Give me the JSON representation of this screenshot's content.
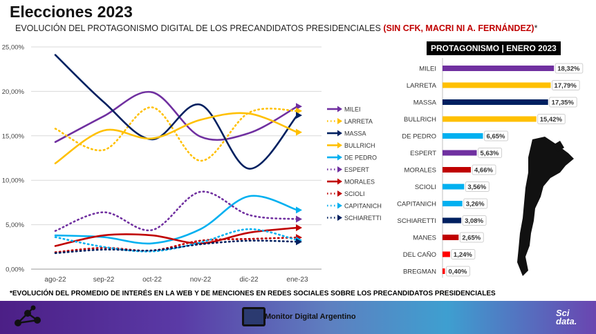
{
  "page": {
    "title": "Elecciones 2023",
    "subtitle_main": "EVOLUCIÓN DEL PROTAGONISMO DIGITAL DE LOS PRECANDIDATOS PRESIDENCIALES",
    "subtitle_red": "(SIN CFK, MACRI NI A. FERNÁNDEZ)",
    "subtitle_mark": "*",
    "footnote": "*EVOLUCIÓN DEL PROMEDIO DE INTERÉS EN LA WEB Y DE MENCIONES EN REDES SOCIALES SOBRE LOS PRECANDIDATOS PRESIDENCIALES",
    "footer_label": "Monitor Digital Argentino",
    "footer_brand_1": "Sci",
    "footer_brand_2": "data."
  },
  "colors": {
    "purple": "#7030a0",
    "yellow": "#ffc000",
    "navy": "#002060",
    "cyan": "#00b0f0",
    "red": "#c00000",
    "bright_red": "#ff0000"
  },
  "chart_data": [
    {
      "type": "line",
      "categories": [
        "ago-22",
        "sep-22",
        "oct-22",
        "nov-22",
        "dic-22",
        "ene-23"
      ],
      "ylim": [
        0,
        25
      ],
      "yticks": [
        "0,00%",
        "5,00%",
        "10,00%",
        "15,00%",
        "20,00%",
        "25,00%"
      ],
      "grid": true,
      "legend_position": "right",
      "series": [
        {
          "name": "MILEI",
          "color": "#7030a0",
          "style": "solid",
          "values": [
            14.3,
            17.2,
            19.9,
            14.9,
            15.3,
            18.3
          ]
        },
        {
          "name": "LARRETA",
          "color": "#ffc000",
          "style": "dotted",
          "values": [
            15.8,
            13.4,
            18.2,
            12.2,
            17.6,
            17.8
          ]
        },
        {
          "name": "MASSA",
          "color": "#002060",
          "style": "solid",
          "values": [
            24.1,
            18.8,
            14.6,
            18.5,
            11.3,
            17.3
          ]
        },
        {
          "name": "BULLRICH",
          "color": "#ffc000",
          "style": "solid",
          "values": [
            11.9,
            15.6,
            14.7,
            16.8,
            17.5,
            15.4
          ]
        },
        {
          "name": "DE PEDRO",
          "color": "#00b0f0",
          "style": "solid",
          "values": [
            3.8,
            3.6,
            2.9,
            4.5,
            8.2,
            6.65
          ]
        },
        {
          "name": "ESPERT",
          "color": "#7030a0",
          "style": "dotted",
          "values": [
            4.3,
            6.4,
            4.4,
            8.7,
            6.1,
            5.63
          ]
        },
        {
          "name": "MORALES",
          "color": "#c00000",
          "style": "solid",
          "values": [
            2.6,
            3.8,
            3.8,
            2.9,
            4.1,
            4.66
          ]
        },
        {
          "name": "SCIOLI",
          "color": "#c00000",
          "style": "dotted",
          "values": [
            1.9,
            2.4,
            2.1,
            3.2,
            3.4,
            3.56
          ]
        },
        {
          "name": "CAPITANICH",
          "color": "#00b0f0",
          "style": "dotted",
          "values": [
            3.6,
            2.5,
            2.0,
            3.0,
            4.5,
            3.26
          ]
        },
        {
          "name": "SCHIARETTI",
          "color": "#002060",
          "style": "dotted",
          "values": [
            1.8,
            2.2,
            2.1,
            2.8,
            3.2,
            3.08
          ]
        }
      ]
    },
    {
      "type": "bar",
      "orientation": "horizontal",
      "title": "PROTAGONISMO  |  ENERO 2023",
      "xlim": [
        0,
        20
      ],
      "categories": [
        "MILEI",
        "LARRETA",
        "MASSA",
        "BULLRICH",
        "DE PEDRO",
        "ESPERT",
        "MORALES",
        "SCIOLI",
        "CAPITANICH",
        "SCHIARETTI",
        "MANES",
        "DEL CAÑO",
        "BREGMAN"
      ],
      "values": [
        18.32,
        17.79,
        17.35,
        15.42,
        6.65,
        5.63,
        4.66,
        3.56,
        3.26,
        3.08,
        2.65,
        1.24,
        0.4
      ],
      "labels": [
        "18,32%",
        "17,79%",
        "17,35%",
        "15,42%",
        "6,65%",
        "5,63%",
        "4,66%",
        "3,56%",
        "3,26%",
        "3,08%",
        "2,65%",
        "1,24%",
        "0,40%"
      ],
      "colors": [
        "#7030a0",
        "#ffc000",
        "#002060",
        "#ffc000",
        "#00b0f0",
        "#7030a0",
        "#c00000",
        "#00b0f0",
        "#00b0f0",
        "#002060",
        "#c00000",
        "#ff0000",
        "#ff0000"
      ]
    }
  ]
}
